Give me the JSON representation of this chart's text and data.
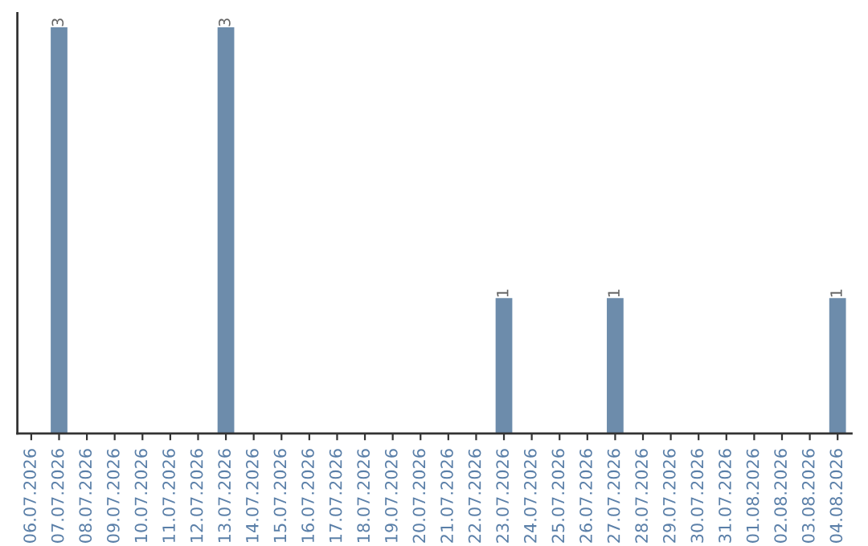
{
  "chart_data": {
    "type": "bar",
    "categories": [
      "06.07.2026",
      "07.07.2026",
      "08.07.2026",
      "09.07.2026",
      "10.07.2026",
      "11.07.2026",
      "12.07.2026",
      "13.07.2026",
      "14.07.2026",
      "15.07.2026",
      "16.07.2026",
      "17.07.2026",
      "18.07.2026",
      "19.07.2026",
      "20.07.2026",
      "21.07.2026",
      "22.07.2026",
      "23.07.2026",
      "24.07.2026",
      "25.07.2026",
      "26.07.2026",
      "27.07.2026",
      "28.07.2026",
      "29.07.2026",
      "30.07.2026",
      "31.07.2026",
      "01.08.2026",
      "02.08.2026",
      "03.08.2026",
      "04.08.2026"
    ],
    "values": [
      0,
      3,
      0,
      0,
      0,
      0,
      0,
      3,
      0,
      0,
      0,
      0,
      0,
      0,
      0,
      0,
      0,
      1,
      0,
      0,
      0,
      1,
      0,
      0,
      0,
      0,
      0,
      0,
      0,
      1
    ],
    "value_labels": [
      null,
      "3",
      null,
      null,
      null,
      null,
      null,
      "3",
      null,
      null,
      null,
      null,
      null,
      null,
      null,
      null,
      null,
      "1",
      null,
      null,
      null,
      "1",
      null,
      null,
      null,
      null,
      null,
      null,
      null,
      "1"
    ],
    "color": "#6d8cab",
    "tick_labels": "x",
    "grid": false,
    "legend": false
  }
}
